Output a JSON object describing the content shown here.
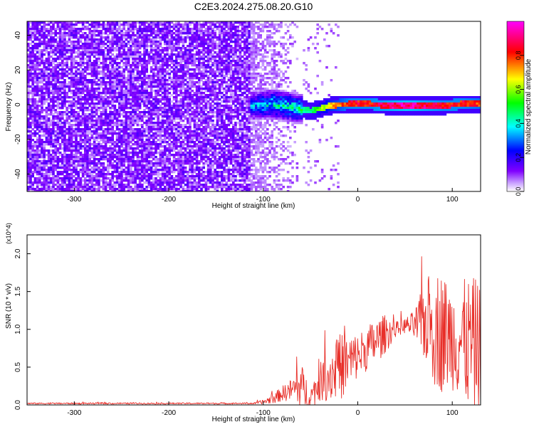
{
  "title": "C2E3.2024.275.08.20.G10",
  "colors": {
    "spectrogram_noise": "#7a2cf0",
    "snr_line": "#e8302a",
    "colorbar": [
      "#ff00ff",
      "#ff0000",
      "#ffff00",
      "#00ff00",
      "#00ffff",
      "#0000ff",
      "#8000ff",
      "#ffffff"
    ]
  },
  "chart_data": [
    {
      "type": "heatmap",
      "xlabel": "Height of straight line (km)",
      "ylabel": "Frequency (Hz)",
      "xlim": [
        -350,
        130
      ],
      "ylim": [
        -50,
        48
      ],
      "x_ticks": [
        "-300",
        "-200",
        "-100",
        "0",
        "100"
      ],
      "y_ticks": [
        "-40",
        "-20",
        "0",
        "20",
        "40"
      ],
      "colorbar": {
        "label": "Normalized spectral amplitude",
        "range": [
          0.0,
          1.0
        ],
        "ticks": [
          "0.0",
          "0.2",
          "0.4",
          "0.6",
          "0.8"
        ]
      },
      "signal_band": {
        "x": [
          -110,
          -90,
          -70,
          -50,
          -30,
          -10,
          10,
          30,
          50,
          70,
          90,
          110,
          130
        ],
        "center_freq": [
          0,
          1,
          -1,
          -3,
          0,
          1,
          1,
          0,
          0,
          0,
          0,
          1,
          1
        ],
        "peak_amplitude": [
          0.35,
          0.45,
          0.45,
          0.5,
          0.75,
          0.9,
          0.9,
          0.95,
          1.0,
          0.95,
          0.9,
          0.9,
          0.85
        ]
      }
    },
    {
      "type": "line",
      "xlabel": "Height of straight line (km)",
      "ylabel": "SNR (10 * v/v)",
      "y_multiplier": "(x10^4)",
      "xlim": [
        -350,
        130
      ],
      "ylim": [
        0,
        2.25
      ],
      "x_ticks": [
        "-300",
        "-200",
        "-100",
        "0",
        "100"
      ],
      "y_ticks": [
        "0.0",
        "0.5",
        "1.0",
        "1.5",
        "2.0"
      ],
      "series": [
        {
          "x": [
            -350,
            -300,
            -250,
            -200,
            -150,
            -110,
            -100,
            -90,
            -80,
            -70,
            -60,
            -50,
            -40,
            -30,
            -20,
            -10,
            0,
            10,
            20,
            30,
            40,
            50,
            60,
            70,
            80,
            90,
            100,
            110,
            120,
            130
          ],
          "y": [
            0.02,
            0.02,
            0.02,
            0.02,
            0.02,
            0.02,
            0.04,
            0.08,
            0.15,
            0.2,
            0.25,
            0.1,
            0.3,
            0.4,
            0.5,
            0.55,
            0.65,
            0.75,
            0.85,
            0.95,
            1.0,
            1.05,
            1.05,
            1.1,
            1.05,
            0.95,
            0.9,
            0.85,
            0.8,
            0.75
          ],
          "spread": [
            0.01,
            0.01,
            0.01,
            0.01,
            0.01,
            0.01,
            0.03,
            0.06,
            0.1,
            0.15,
            0.3,
            0.15,
            0.25,
            0.35,
            0.45,
            0.4,
            0.3,
            0.3,
            0.3,
            0.25,
            0.1,
            0.1,
            0.2,
            0.5,
            0.8,
            0.8,
            0.7,
            0.8,
            0.9,
            0.9
          ]
        }
      ]
    }
  ]
}
